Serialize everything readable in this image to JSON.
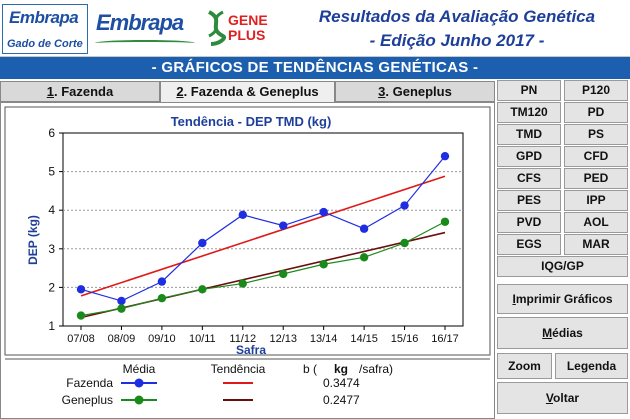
{
  "header": {
    "logo1_brand": "Embrapa",
    "logo1_sub": "Gado de Corte",
    "logo2_brand": "Embrapa",
    "gene_line1": "GENE",
    "gene_line2": "PLUS",
    "title_line1": "Resultados da Avaliação Genética",
    "title_line2": "- Edição Junho 2017 -"
  },
  "band_title": "- GRÁFICOS DE TENDÊNCIAS GENÉTICAS -",
  "tabs": [
    {
      "key": "1",
      "label": ". Fazenda"
    },
    {
      "key": "2",
      "label": ". Fazenda & Geneplus"
    },
    {
      "key": "3",
      "label": ". Geneplus"
    }
  ],
  "trait_buttons": [
    "PN",
    "P120",
    "TM120",
    "PD",
    "TMD",
    "PS",
    "GPD",
    "CFD",
    "CFS",
    "PED",
    "PES",
    "IPP",
    "PVD",
    "AOL",
    "EGS",
    "MAR",
    "IQG/GP"
  ],
  "actions": {
    "print_key": "I",
    "print_rest": "mprimir Gráficos",
    "means_key": "M",
    "means_rest": "édias",
    "zoom": "Zoom",
    "legend": "Legenda",
    "back_key": "V",
    "back_rest": "oltar"
  },
  "legend_table": {
    "col_media": "Média",
    "col_tendencia": "Tendência",
    "col_b_prefix": "b (",
    "col_b_unit": "kg",
    "col_b_suffix": "/safra)",
    "rows": [
      {
        "name": "Fazenda",
        "b": "0.3474"
      },
      {
        "name": "Geneplus",
        "b": "0.2477"
      }
    ]
  },
  "colors": {
    "fazenda": "#1f2ee0",
    "geneplus": "#1a8a1a",
    "trend_fazenda": "#e01818",
    "trend_geneplus": "#6b0d0d",
    "band": "#1c5fae",
    "title": "#1e3f99"
  },
  "chart_data": {
    "type": "line",
    "title": "Tendência - DEP TMD (kg)",
    "xlabel": "Safra",
    "ylabel": "DEP (kg)",
    "ylim": [
      1,
      6
    ],
    "yticks": [
      1,
      2,
      3,
      4,
      5,
      6
    ],
    "grid": true,
    "categories": [
      "07/08",
      "08/09",
      "09/10",
      "10/11",
      "11/12",
      "12/13",
      "13/14",
      "14/15",
      "15/16",
      "16/17"
    ],
    "series": [
      {
        "name": "Fazenda",
        "values": [
          1.95,
          1.65,
          2.15,
          3.15,
          3.88,
          3.6,
          3.95,
          3.52,
          4.12,
          5.4
        ]
      },
      {
        "name": "Geneplus",
        "values": [
          1.27,
          1.45,
          1.72,
          1.95,
          2.1,
          2.35,
          2.6,
          2.78,
          3.15,
          3.7
        ]
      }
    ],
    "trend_lines": [
      {
        "name": "Fazenda",
        "start": 1.78,
        "end": 4.88
      },
      {
        "name": "Geneplus",
        "start": 1.22,
        "end": 3.42
      }
    ]
  }
}
